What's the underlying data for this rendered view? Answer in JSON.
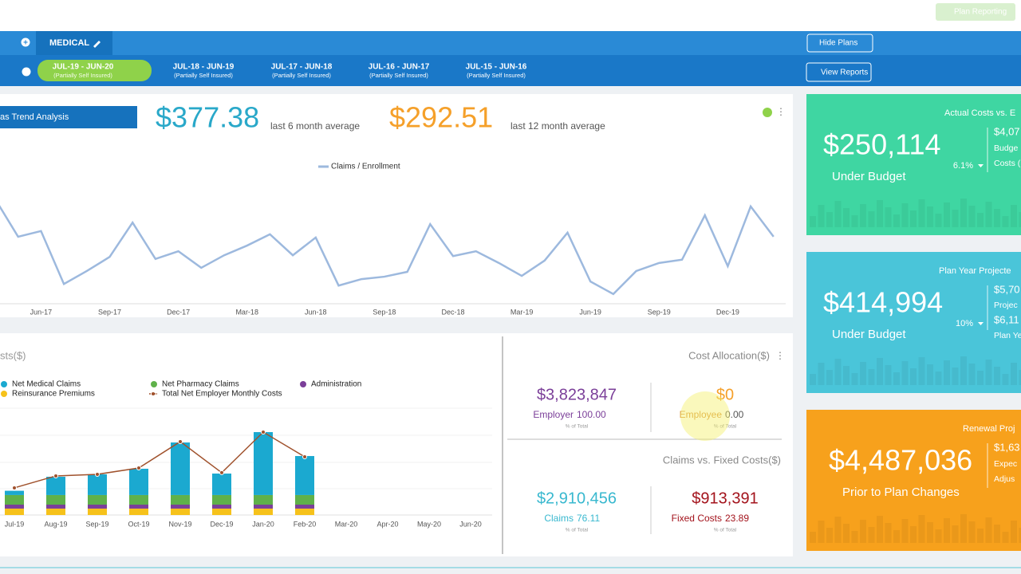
{
  "top_bar": {
    "button": "Plan Reporting"
  },
  "plan_tabs": {
    "medical": "MEDICAL",
    "hide_plans": "Hide Plans",
    "view_reports": "View Reports",
    "years": [
      {
        "range": "JUL-19 - JUN-20",
        "note": "(Partially Self Insured)"
      },
      {
        "range": "JUL-18 - JUN-19",
        "note": "(Partially Self Insured)"
      },
      {
        "range": "JUL-17 - JUN-18",
        "note": "(Partially Self Insured)"
      },
      {
        "range": "JUL-16 - JUN-17",
        "note": "(Partially Self Insured)"
      },
      {
        "range": "JUL-15 - JUN-16",
        "note": "(Partially Self Insured)"
      }
    ]
  },
  "trend": {
    "button": "as Trend Analysis",
    "avg6": {
      "value": "$377.38",
      "label": "last 6 month average"
    },
    "avg12": {
      "value": "$292.51",
      "label": "last 12 month average"
    },
    "chart": {
      "type": "line",
      "categories": [
        null,
        null,
        "Jun-17",
        null,
        null,
        "Sep-17",
        null,
        null,
        "Dec-17",
        null,
        null,
        "Mar-18",
        null,
        null,
        "Jun-18",
        null,
        null,
        "Sep-18",
        null,
        null,
        "Dec-18",
        null,
        null,
        "Mar-19",
        null,
        null,
        "Jun-19",
        null,
        null,
        "Sep-19",
        null,
        null,
        "Dec-19",
        null,
        null
      ],
      "series": [
        {
          "name": "Claims / Enrollment",
          "color": "#9db9de",
          "values": [
            457,
            364,
            378,
            247,
            279,
            314,
            399,
            309,
            328,
            287,
            318,
            342,
            370,
            318,
            362,
            243,
            259,
            265,
            277,
            395,
            316,
            328,
            299,
            267,
            305,
            374,
            253,
            222,
            279,
            299,
            307,
            417,
            291,
            439,
            364
          ]
        }
      ],
      "ylim": [
        200,
        500
      ]
    }
  },
  "costs": {
    "title": "sts($)",
    "chart": {
      "type": "bar",
      "categories": [
        "Jul-19",
        "Aug-19",
        "Sep-19",
        "Oct-19",
        "Nov-19",
        "Dec-19",
        "Jan-20",
        "Feb-20",
        "Mar-20",
        "Apr-20",
        "May-20",
        "Jun-20"
      ],
      "series": [
        {
          "name": "Net Medical Claims",
          "color": "#1ba9d0",
          "values": [
            40000,
            171000,
            194000,
            246000,
            492000,
            201000,
            589000,
            365000,
            null,
            null,
            null,
            null
          ]
        },
        {
          "name": "Net Pharmacy Claims",
          "color": "#5fb14a",
          "values": [
            90000,
            90000,
            90000,
            90000,
            90000,
            90000,
            90000,
            90000,
            null,
            null,
            null,
            null
          ]
        },
        {
          "name": "Administration",
          "color": "#7b3f99",
          "values": [
            37000,
            37000,
            37000,
            37000,
            37000,
            37000,
            37000,
            37000,
            null,
            null,
            null,
            null
          ]
        },
        {
          "name": "Reinsurance Premiums",
          "color": "#f6c21b",
          "values": [
            60000,
            60000,
            60000,
            60000,
            60000,
            60000,
            60000,
            60000,
            null,
            null,
            null,
            null
          ]
        },
        {
          "name": "Total Net Employer Monthly Costs",
          "type": "line",
          "color": "#a0522d",
          "values": [
            254000,
            366000,
            381000,
            440000,
            687000,
            396000,
            776000,
            545000,
            null,
            null,
            null,
            null
          ]
        }
      ],
      "ylim": [
        0,
        1000000
      ]
    }
  },
  "cost_allocation": {
    "title": "Cost Allocation($)",
    "items": [
      {
        "amount": "$3,823,847",
        "label": "Employer",
        "pct": "100.00",
        "note": "% of Total"
      },
      {
        "amount": "$0",
        "label": "Employee",
        "pct": "0.00",
        "note": "% of Total"
      }
    ]
  },
  "claims_vs_fixed": {
    "title": "Claims vs. Fixed Costs($)",
    "items": [
      {
        "amount": "$2,910,456",
        "label": "Claims",
        "pct": "76.11",
        "note": "% of Total"
      },
      {
        "amount": "$913,391",
        "label": "Fixed Costs",
        "pct": "23.89",
        "note": "% of Total"
      }
    ]
  },
  "cards": [
    {
      "title": "Actual Costs vs. E",
      "amount": "$250,114",
      "status": "Under Budget",
      "change": "6.1%",
      "side": [
        "$4,07",
        "Budge",
        "Costs ("
      ],
      "color": "#3fd6a2"
    },
    {
      "title": "Plan Year Projecte",
      "amount": "$414,994",
      "status": "Under Budget",
      "change": "10%",
      "side": [
        "$5,70",
        "Projec",
        "$6,11",
        "Plan Ye"
      ],
      "color": "#4ac5d9"
    },
    {
      "title": "Renewal Proj",
      "amount": "$4,487,036",
      "status": "Prior to Plan Changes",
      "side": [
        "$1,63",
        "Expec",
        "Adjus"
      ],
      "color": "#f7a11c"
    }
  ]
}
